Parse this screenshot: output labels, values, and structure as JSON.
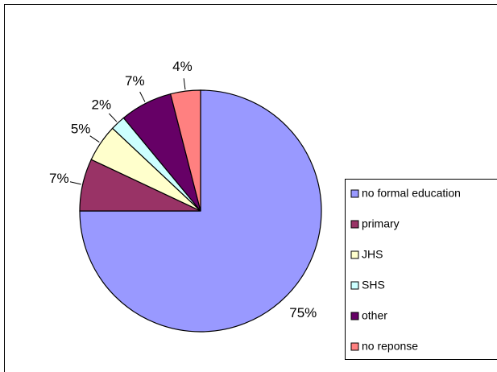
{
  "chart_data": {
    "type": "pie",
    "categories": [
      "no formal education",
      "primary",
      "JHS",
      "SHS",
      "other",
      "no reponse"
    ],
    "values": [
      75,
      7,
      5,
      2,
      7,
      4
    ],
    "value_labels": [
      "75%",
      "7%",
      "5%",
      "2%",
      "7%",
      "4%"
    ],
    "colors": [
      "#9999ff",
      "#993366",
      "#ffffcc",
      "#ccffff",
      "#660066",
      "#ff8080"
    ],
    "legend": "right"
  }
}
